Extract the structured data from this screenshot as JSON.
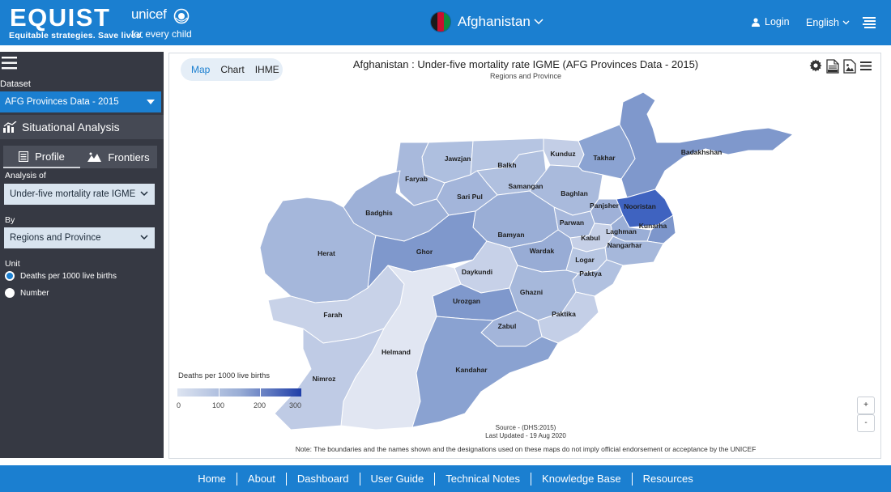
{
  "header": {
    "logo_main": "EQUIST",
    "logo_tagline": "Equitable strategies. Save lives.",
    "partner_name": "unicef",
    "partner_tagline": "for every child",
    "country": "Afghanistan",
    "login_label": "Login",
    "language": "English"
  },
  "sidebar": {
    "dataset_label": "Dataset",
    "dataset_value": "AFG Provinces Data - 2015",
    "section_title": "Situational Analysis",
    "tabs": [
      {
        "label": "Profile",
        "icon": "profile-icon"
      },
      {
        "label": "Frontiers",
        "icon": "frontiers-icon"
      }
    ],
    "analysis_label": "Analysis of",
    "analysis_value": "Under-five mortality rate IGME",
    "by_label": "By",
    "by_value": "Regions and Province",
    "unit_label": "Unit",
    "unit_options": [
      {
        "label": "Deaths per 1000 live births",
        "selected": true
      },
      {
        "label": "Number",
        "selected": false
      }
    ]
  },
  "main": {
    "views": [
      {
        "label": "Map",
        "active": true
      },
      {
        "label": "Chart",
        "active": false
      },
      {
        "label": "IHME",
        "active": false
      }
    ],
    "title": "Afghanistan : Under-five mortality rate IGME (AFG Provinces Data - 2015)",
    "subtitle": "Regions and Province",
    "tools": [
      "gear-icon",
      "xlsx-icon",
      "image-export-icon",
      "menu-icon"
    ],
    "legend": {
      "title": "Deaths per 1000 live births",
      "ticks": [
        "0",
        "100",
        "200",
        "300"
      ],
      "colors": [
        "#dde4f1",
        "#9aaed6",
        "#1f3ea8"
      ]
    },
    "zoom_in": "+",
    "zoom_out": "-",
    "source_line": "Source - (DHS:2015)",
    "updated_line": "Last Updated - 19 Aug 2020",
    "note": "Note: The boundaries and the names shown and the designations used on these maps do not imply official endorsement or acceptance by the UNICEF",
    "provinces": [
      {
        "name": "Badakhshan",
        "color": "#7f98cc"
      },
      {
        "name": "Kunduz",
        "color": "#c3cee6"
      },
      {
        "name": "Takhar",
        "color": "#8ba3d2"
      },
      {
        "name": "Jawzjan",
        "color": "#aebfdf"
      },
      {
        "name": "Balkh",
        "color": "#b6c5e2"
      },
      {
        "name": "Faryab",
        "color": "#a8b9dc"
      },
      {
        "name": "Samangan",
        "color": "#b0c0df"
      },
      {
        "name": "Sari Pul",
        "color": "#a3b5da"
      },
      {
        "name": "Baghlan",
        "color": "#a9badc"
      },
      {
        "name": "Badghis",
        "color": "#9db0d7"
      },
      {
        "name": "Panjsher",
        "color": "#9fb1d8"
      },
      {
        "name": "Nooristan",
        "color": "#3f63c0"
      },
      {
        "name": "Kunarha",
        "color": "#7d96cb"
      },
      {
        "name": "Parwan",
        "color": "#a8b9dc"
      },
      {
        "name": "Laghman",
        "color": "#9aaed6"
      },
      {
        "name": "Kabul",
        "color": "#c6d0e7"
      },
      {
        "name": "Nangarhar",
        "color": "#a6b8db"
      },
      {
        "name": "Bamyan",
        "color": "#9aaed6"
      },
      {
        "name": "Wardak",
        "color": "#98acd5"
      },
      {
        "name": "Logar",
        "color": "#b7c6e2"
      },
      {
        "name": "Herat",
        "color": "#a5b7db"
      },
      {
        "name": "Ghor",
        "color": "#7f98cc"
      },
      {
        "name": "Daykundi",
        "color": "#c7d1e8"
      },
      {
        "name": "Paktya",
        "color": "#b1c1e0"
      },
      {
        "name": "Ghazni",
        "color": "#a6b8db"
      },
      {
        "name": "Urozgan",
        "color": "#7f98cc"
      },
      {
        "name": "Paktika",
        "color": "#c4cfe7"
      },
      {
        "name": "Farah",
        "color": "#c8d2e8"
      },
      {
        "name": "Zabul",
        "color": "#a3b5da"
      },
      {
        "name": "Helmand",
        "color": "#e1e6f2"
      },
      {
        "name": "Nimroz",
        "color": "#bfcbe5"
      },
      {
        "name": "Kandahar",
        "color": "#8aa2d1"
      }
    ]
  },
  "footer": {
    "links": [
      "Home",
      "About",
      "Dashboard",
      "User Guide",
      "Technical Notes",
      "Knowledge Base",
      "Resources"
    ]
  }
}
